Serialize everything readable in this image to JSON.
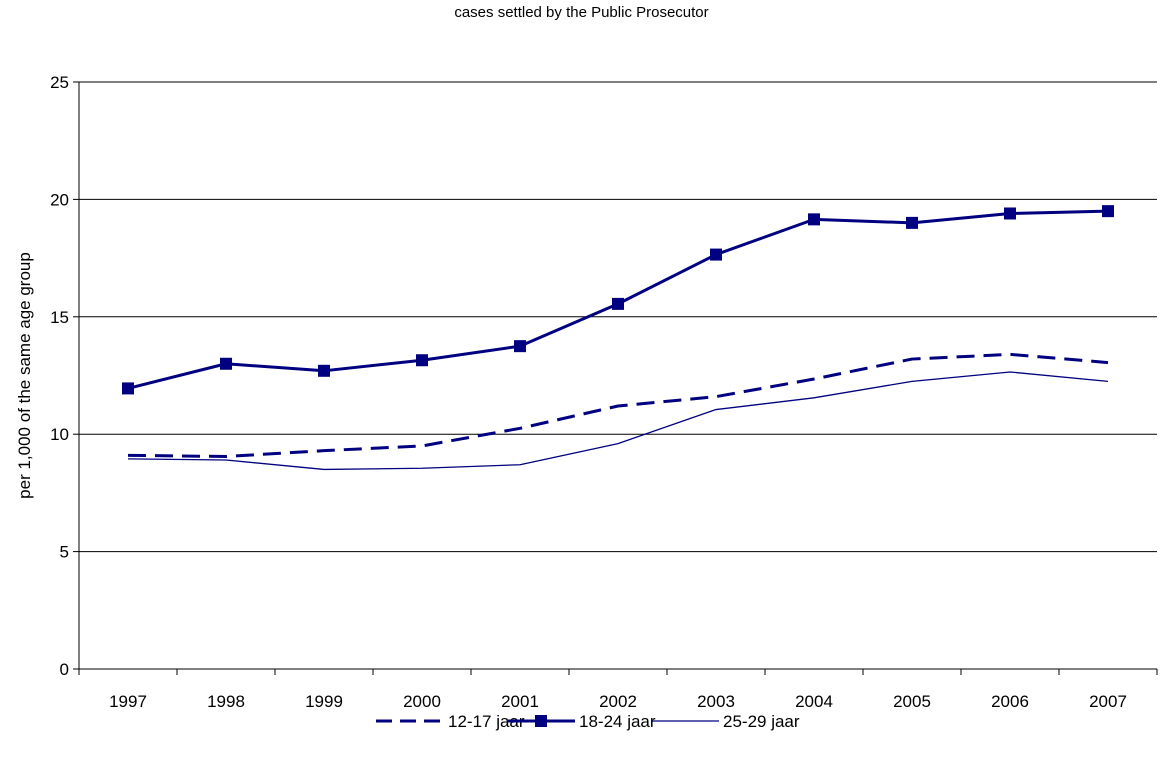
{
  "chart_data": {
    "type": "line",
    "title": "cases settled by the Public Prosecutor",
    "ylabel": "per 1,000 of the same age group",
    "xlabel": "",
    "ylim": [
      0,
      25
    ],
    "yticks": [
      0,
      5,
      10,
      15,
      20,
      25
    ],
    "grid": "horizontal",
    "legend_position": "bottom",
    "categories": [
      "1997",
      "1998",
      "1999",
      "2000",
      "2001",
      "2002",
      "2003",
      "2004",
      "2005",
      "2006",
      "2007"
    ],
    "series": [
      {
        "name": "12-17 jaar",
        "style": "dashed",
        "color": "#000080",
        "values": [
          9.1,
          9.05,
          9.3,
          9.5,
          10.25,
          11.2,
          11.6,
          12.35,
          13.2,
          13.4,
          13.05
        ]
      },
      {
        "name": "18-24 jaar",
        "style": "solid-square-markers",
        "color": "#000080",
        "values": [
          11.95,
          13.0,
          12.7,
          13.15,
          13.75,
          15.55,
          17.65,
          19.15,
          19.0,
          19.4,
          19.5
        ]
      },
      {
        "name": "25-29 jaar",
        "style": "thin-solid",
        "color": "#000080",
        "values": [
          8.95,
          8.9,
          8.5,
          8.55,
          8.7,
          9.6,
          11.05,
          11.55,
          12.25,
          12.65,
          12.25
        ]
      }
    ]
  }
}
